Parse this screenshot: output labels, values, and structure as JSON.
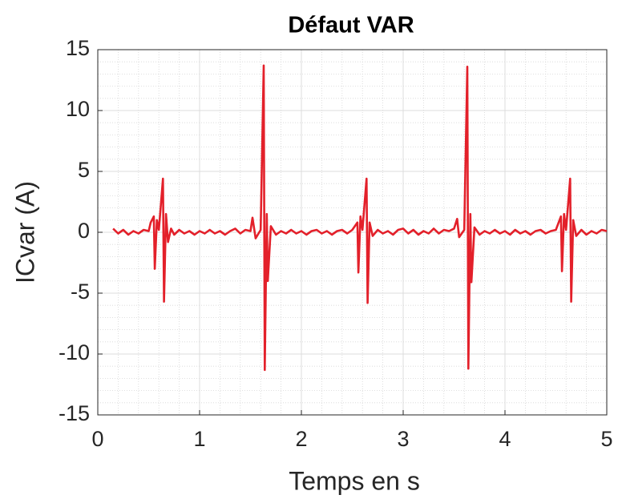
{
  "chart_data": {
    "type": "line",
    "title": "Défaut VAR",
    "xlabel": "Temps en s",
    "ylabel": "ICvar (A)",
    "xlim": [
      0,
      5
    ],
    "ylim": [
      -15,
      15
    ],
    "xticks": [
      0,
      1,
      2,
      3,
      4,
      5
    ],
    "yticks": [
      -15,
      -10,
      -5,
      0,
      5,
      10,
      15
    ],
    "xminorticks": [
      0.2,
      0.4,
      0.6,
      0.8,
      1.2,
      1.4,
      1.6,
      1.8,
      2.2,
      2.4,
      2.6,
      2.8,
      3.2,
      3.4,
      3.6,
      3.8,
      4.2,
      4.4,
      4.6,
      4.8
    ],
    "yminorticks": [
      -14,
      -13,
      -12,
      -11,
      -9,
      -8,
      -7,
      -6,
      -4,
      -3,
      -2,
      -1,
      1,
      2,
      3,
      4,
      6,
      7,
      8,
      9,
      11,
      12,
      13,
      14
    ],
    "grid": true,
    "minor_grid": true,
    "series": [
      {
        "name": "ICvar",
        "color": "#e3202a",
        "x": [
          0.15,
          0.2,
          0.25,
          0.3,
          0.35,
          0.4,
          0.45,
          0.5,
          0.52,
          0.55,
          0.56,
          0.58,
          0.6,
          0.64,
          0.65,
          0.67,
          0.69,
          0.72,
          0.75,
          0.8,
          0.85,
          0.9,
          0.95,
          1.0,
          1.05,
          1.1,
          1.15,
          1.2,
          1.25,
          1.3,
          1.35,
          1.4,
          1.45,
          1.5,
          1.52,
          1.55,
          1.6,
          1.63,
          1.64,
          1.66,
          1.67,
          1.7,
          1.75,
          1.8,
          1.85,
          1.9,
          1.95,
          2.0,
          2.05,
          2.1,
          2.15,
          2.2,
          2.25,
          2.3,
          2.35,
          2.4,
          2.45,
          2.5,
          2.55,
          2.56,
          2.58,
          2.6,
          2.64,
          2.65,
          2.67,
          2.7,
          2.75,
          2.8,
          2.85,
          2.9,
          2.95,
          3.0,
          3.05,
          3.1,
          3.15,
          3.2,
          3.25,
          3.3,
          3.35,
          3.4,
          3.45,
          3.5,
          3.53,
          3.55,
          3.6,
          3.63,
          3.64,
          3.66,
          3.67,
          3.7,
          3.75,
          3.8,
          3.85,
          3.9,
          3.95,
          4.0,
          4.05,
          4.1,
          4.15,
          4.2,
          4.25,
          4.3,
          4.35,
          4.4,
          4.45,
          4.5,
          4.55,
          4.56,
          4.58,
          4.6,
          4.64,
          4.65,
          4.67,
          4.7,
          4.75,
          4.8,
          4.85,
          4.9,
          4.95,
          5.0
        ],
        "values": [
          0.3,
          -0.1,
          0.2,
          -0.2,
          0.1,
          -0.1,
          0.2,
          0.1,
          0.8,
          1.3,
          -3.0,
          1.0,
          0.2,
          4.4,
          -5.7,
          1.5,
          -0.8,
          0.3,
          -0.2,
          0.2,
          -0.1,
          0.1,
          -0.2,
          0.1,
          -0.1,
          0.2,
          -0.1,
          0.1,
          -0.2,
          0.1,
          0.3,
          -0.1,
          0.2,
          0.1,
          1.2,
          -0.5,
          0.2,
          13.7,
          -11.3,
          1.5,
          -4.0,
          0.5,
          -0.2,
          0.1,
          -0.1,
          0.2,
          -0.1,
          0.1,
          -0.2,
          0.1,
          0.2,
          -0.1,
          0.1,
          -0.2,
          0.1,
          0.2,
          -0.1,
          0.2,
          0.8,
          -3.3,
          1.3,
          0.2,
          4.4,
          -5.8,
          0.8,
          -0.3,
          0.2,
          -0.1,
          0.1,
          -0.2,
          0.2,
          0.3,
          -0.1,
          0.2,
          -0.2,
          0.1,
          -0.1,
          0.3,
          -0.1,
          0.2,
          0.1,
          0.3,
          1.1,
          -0.4,
          0.2,
          13.6,
          -11.2,
          1.5,
          -4.1,
          0.4,
          -0.2,
          0.1,
          -0.1,
          0.2,
          -0.1,
          0.1,
          -0.2,
          0.2,
          -0.1,
          0.1,
          -0.2,
          0.1,
          0.2,
          -0.1,
          0.1,
          0.2,
          1.3,
          -3.2,
          1.5,
          0.2,
          4.4,
          -5.7,
          1.0,
          -0.3,
          0.2,
          -0.2,
          0.1,
          -0.1,
          0.2,
          0.1
        ]
      }
    ]
  }
}
